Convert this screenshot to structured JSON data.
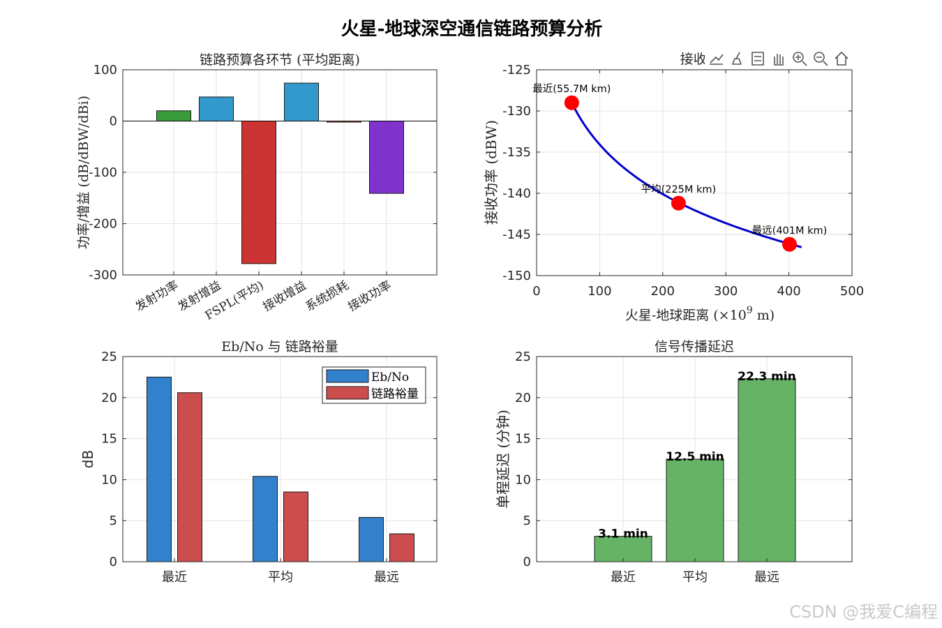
{
  "suptitle": "火星-地球深空通信链路预算分析",
  "watermark": "CSDN @我爱C编程",
  "toolbar": {
    "icons": [
      "export-icon",
      "brush-icon",
      "data-tips-icon",
      "pan-icon",
      "zoom-in-icon",
      "zoom-out-icon",
      "home-icon"
    ]
  },
  "chart_data": [
    {
      "type": "bar",
      "title": "链路预算各环节 (平均距离)",
      "ylabel": "功率/增益 (dB/dBW/dBi)",
      "categories": [
        "发射功率",
        "发射增益",
        "FSPL(平均)",
        "接收增益",
        "系统损耗",
        "接收功率"
      ],
      "values": [
        20,
        47,
        -278,
        74,
        -2,
        -141
      ],
      "colors": [
        "#3a9b3a",
        "#3399cc",
        "#cc3333",
        "#3399cc",
        "#cc5533",
        "#7f33cc"
      ],
      "ylim": [
        -300,
        100
      ],
      "yticks": [
        100,
        0,
        -100,
        -200,
        -300
      ],
      "grid": true
    },
    {
      "type": "line",
      "title": "接收功率 \\",
      "xlabel": "火星-地球距离 (×10",
      "xlabel_sup": "9",
      "xlabel_tail": " m)",
      "ylabel": "接收功率 (dBW)",
      "xlim": [
        0,
        500
      ],
      "ylim": [
        -150,
        -125
      ],
      "xticks": [
        0,
        100,
        200,
        300,
        400,
        500
      ],
      "yticks": [
        -125,
        -130,
        -135,
        -140,
        -145,
        -150
      ],
      "curve_color": "#0000cc",
      "x_start": 55.7,
      "x_end": 420,
      "points": [
        {
          "x": 55.7,
          "y": -129.0,
          "label": "最近(55.7M km)"
        },
        {
          "x": 225,
          "y": -141.2,
          "label": "平均(225M km)"
        },
        {
          "x": 401,
          "y": -146.2,
          "label": "最远(401M km)"
        }
      ],
      "grid": true
    },
    {
      "type": "bar",
      "title": "Eb/No 与 链路裕量",
      "ylabel": "dB",
      "categories": [
        "最近",
        "平均",
        "最远"
      ],
      "series": [
        {
          "name": "Eb/No",
          "values": [
            22.5,
            10.4,
            5.4
          ],
          "color": "#3380cc"
        },
        {
          "name": "链路裕量",
          "values": [
            20.6,
            8.5,
            3.4
          ],
          "color": "#cc4d4d"
        }
      ],
      "ylim": [
        0,
        25
      ],
      "yticks": [
        25,
        20,
        15,
        10,
        5,
        0
      ],
      "legend": "top-right",
      "grid": true
    },
    {
      "type": "bar",
      "title": "信号传播延迟",
      "ylabel": "单程延迟 (分钟)",
      "categories": [
        "最近",
        "平均",
        "最远"
      ],
      "values": [
        3.1,
        12.5,
        22.3
      ],
      "data_labels": [
        "3.1 min",
        "12.5 min",
        "22.3 min"
      ],
      "color": "#66b366",
      "ylim": [
        0,
        25
      ],
      "yticks": [
        25,
        20,
        15,
        10,
        5,
        0
      ],
      "grid": true
    }
  ]
}
